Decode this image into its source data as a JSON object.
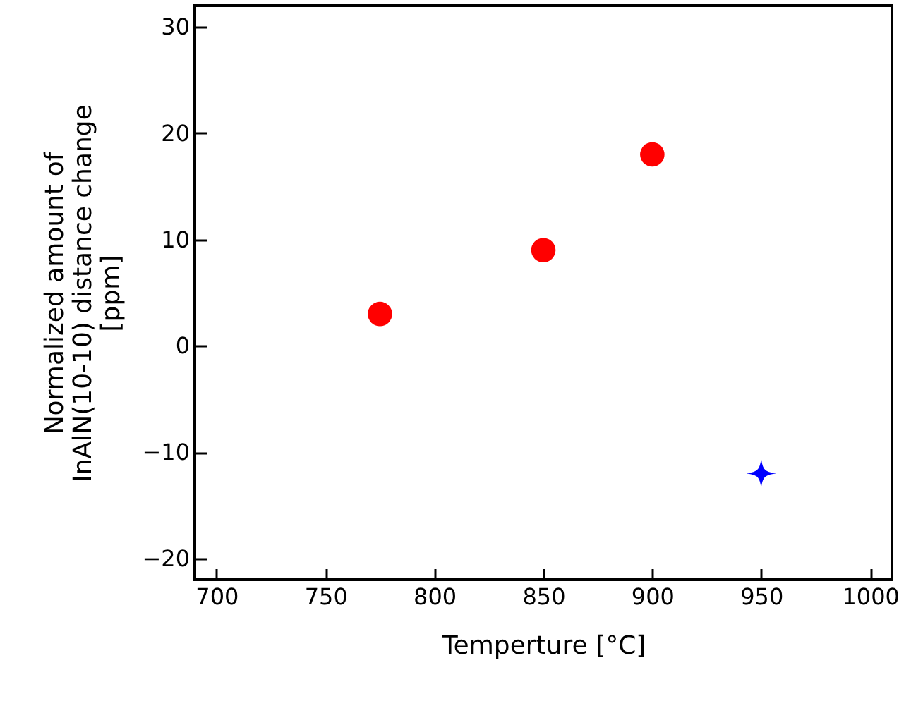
{
  "chart_data": {
    "type": "scatter",
    "xlabel": "Temperture [°C]",
    "ylabel": "Normalized amount of\nInAlN(10-10) distance change\n[ppm]",
    "series": [
      {
        "x": [
          775,
          850,
          900
        ],
        "values": [
          3,
          9,
          18
        ],
        "color": "#ff0000",
        "marker": "circle"
      },
      {
        "x": [
          950
        ],
        "values": [
          -12
        ],
        "color": "#0000ff",
        "marker": "star"
      }
    ],
    "xlim": [
      690,
      1010
    ],
    "xticks": [
      700,
      750,
      800,
      850,
      900,
      950,
      1000
    ],
    "ylim": [
      -22,
      32
    ],
    "yticks": [
      -20,
      -10,
      0,
      10,
      20,
      30
    ],
    "grid": false
  }
}
